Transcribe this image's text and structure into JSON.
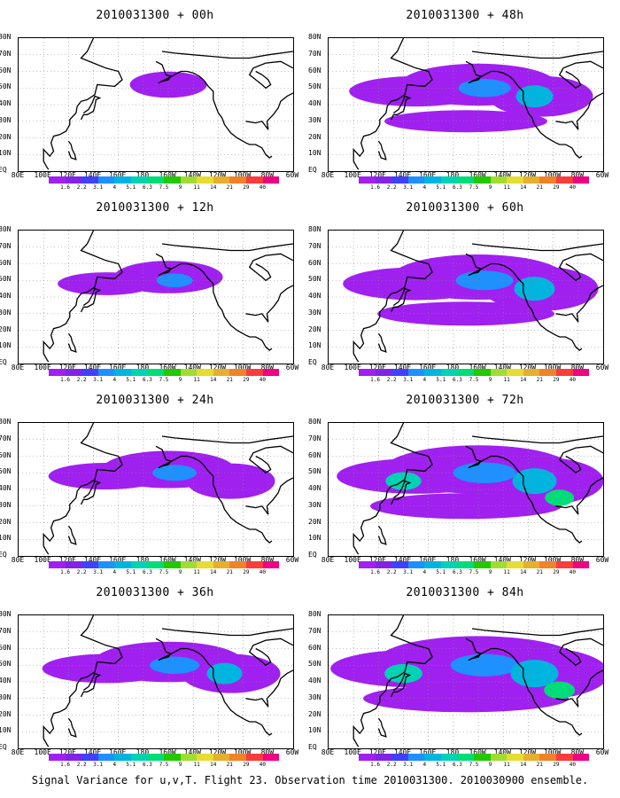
{
  "panels": [
    {
      "title": "2010031300 + 00h",
      "level": 0.15
    },
    {
      "title": "2010031300 + 12h",
      "level": 0.35
    },
    {
      "title": "2010031300 + 24h",
      "level": 0.5
    },
    {
      "title": "2010031300 + 36h",
      "level": 0.6
    },
    {
      "title": "2010031300 + 48h",
      "level": 0.65
    },
    {
      "title": "2010031300 + 60h",
      "level": 0.75
    },
    {
      "title": "2010031300 + 72h",
      "level": 0.85
    },
    {
      "title": "2010031300 + 84h",
      "level": 0.95
    }
  ],
  "lat_labels": [
    "80N",
    "70N",
    "60N",
    "50N",
    "40N",
    "30N",
    "20N",
    "10N",
    "EQ"
  ],
  "lon_labels": [
    "80E",
    "100E",
    "120E",
    "140E",
    "160E",
    "180",
    "160W",
    "140W",
    "120W",
    "100W",
    "80W",
    "60W"
  ],
  "colorbar": {
    "labels": [
      "1.6",
      "2.2",
      "3.1",
      "4",
      "5.1",
      "6.3",
      "7.5",
      "9",
      "11",
      "14",
      "21",
      "29",
      "40"
    ],
    "colors": [
      "#a020f0",
      "#8224e6",
      "#4040ff",
      "#1e90ff",
      "#00b4e0",
      "#00d2b4",
      "#00dc78",
      "#22c800",
      "#a0dc32",
      "#e6dc32",
      "#e6af2d",
      "#f08228",
      "#fa3c3c",
      "#f00082"
    ]
  },
  "caption": "Signal Variance for u,v,T. Flight 23. Observation time 2010031300. 2010030900 ensemble."
}
